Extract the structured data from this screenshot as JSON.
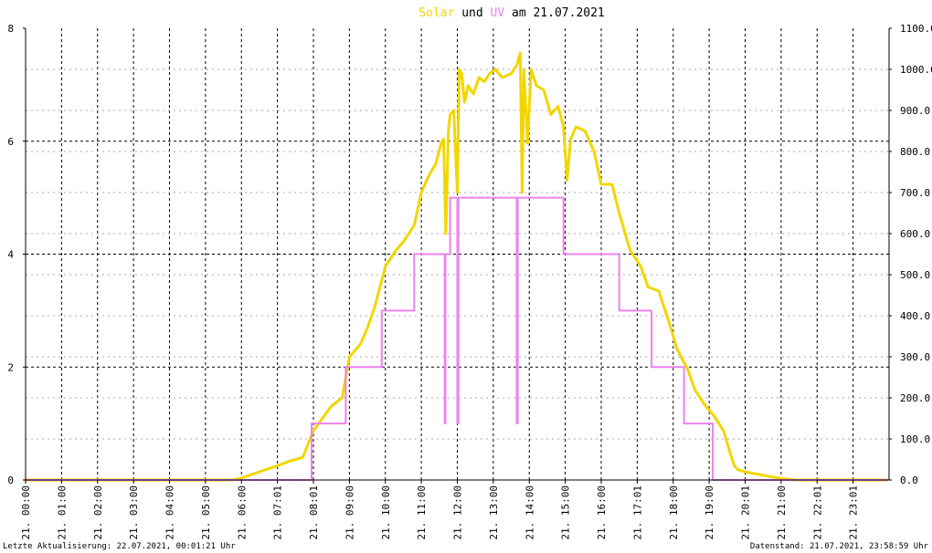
{
  "chart_data": {
    "type": "line",
    "title": {
      "parts": [
        {
          "text": "Solar",
          "color": "#f2d600"
        },
        {
          "text": " und ",
          "color": "#000000"
        },
        {
          "text": "UV",
          "color": "#ee82ee"
        },
        {
          "text": " am 21.07.2021",
          "color": "#000000"
        }
      ]
    },
    "left_axis": {
      "ylim": [
        0,
        8
      ],
      "ticks": [
        "0",
        "2",
        "4",
        "6",
        "8"
      ],
      "series": "UV"
    },
    "right_axis": {
      "ylim": [
        0,
        1100
      ],
      "ticks": [
        "0.0",
        "100.0",
        "200.0",
        "300.0",
        "400.0",
        "500.0",
        "600.0",
        "700.0",
        "800.0",
        "900.0",
        "1000.0",
        "1100.0"
      ],
      "series": "Solar"
    },
    "x_axis": {
      "range_hours": [
        0,
        24
      ],
      "tick_labels": [
        "21. 00:00",
        "21. 01:00",
        "21. 02:00",
        "21. 03:00",
        "21. 04:00",
        "21. 05:00",
        "21. 06:00",
        "21. 07:01",
        "21. 08:01",
        "21. 09:00",
        "21. 10:00",
        "21. 11:00",
        "21. 12:00",
        "21. 13:00",
        "21. 14:00",
        "21. 15:00",
        "21. 16:00",
        "21. 17:01",
        "21. 18:00",
        "21. 19:00",
        "21. 20:01",
        "21. 21:00",
        "21. 22:01",
        "21. 23:01"
      ]
    },
    "grid": true,
    "series": [
      {
        "name": "Solar",
        "axis": "right",
        "color": "#f2d600",
        "x": [
          0,
          5.75,
          6,
          6.5,
          7,
          7.3,
          7.5,
          7.7,
          8,
          8.5,
          8.8,
          9,
          9.3,
          9.5,
          9.7,
          10,
          10.3,
          10.5,
          10.8,
          11,
          11.2,
          11.4,
          11.55,
          11.62,
          11.68,
          11.75,
          11.8,
          11.9,
          12.0,
          12.05,
          12.12,
          12.2,
          12.3,
          12.45,
          12.6,
          12.75,
          12.9,
          13.05,
          13.25,
          13.5,
          13.65,
          13.75,
          13.8,
          13.85,
          13.95,
          14.05,
          14.2,
          14.4,
          14.6,
          14.8,
          14.95,
          15.05,
          15.15,
          15.3,
          15.55,
          15.8,
          16.0,
          16.3,
          16.5,
          16.8,
          17.1,
          17.3,
          17.6,
          17.9,
          18.1,
          18.4,
          18.6,
          18.9,
          19.1,
          19.4,
          19.6,
          19.7,
          19.8,
          20.0,
          20.3,
          20.6,
          20.9,
          21.2,
          21.4,
          22,
          23,
          23.95
        ],
        "y": [
          0,
          0,
          5,
          20,
          35,
          45,
          50,
          55,
          120,
          180,
          200,
          300,
          330,
          370,
          420,
          520,
          560,
          580,
          620,
          700,
          740,
          770,
          820,
          830,
          600,
          850,
          890,
          900,
          700,
          1000,
          990,
          920,
          960,
          940,
          980,
          970,
          990,
          1000,
          980,
          990,
          1010,
          1040,
          700,
          1000,
          820,
          1000,
          960,
          950,
          890,
          910,
          860,
          730,
          830,
          860,
          850,
          800,
          720,
          720,
          650,
          560,
          520,
          470,
          460,
          380,
          320,
          270,
          220,
          180,
          160,
          120,
          60,
          35,
          25,
          20,
          15,
          10,
          5,
          2,
          0,
          0,
          0,
          0
        ]
      },
      {
        "name": "UV",
        "axis": "left",
        "color": "#ee82ee",
        "step": true,
        "x": [
          0,
          7.95,
          7.95,
          8.9,
          8.9,
          9.9,
          9.9,
          10.8,
          10.8,
          11.65,
          11.65,
          11.67,
          11.67,
          11.8,
          11.8,
          11.85,
          11.85,
          12.0,
          12.0,
          12.03,
          12.03,
          12.2,
          12.2,
          13.65,
          13.65,
          13.68,
          13.68,
          13.72,
          13.72,
          14.95,
          14.95,
          16.5,
          16.5,
          17.4,
          17.4,
          18.3,
          18.3,
          19.1,
          19.1,
          23.95
        ],
        "y": [
          0,
          0,
          1,
          1,
          2,
          2,
          3,
          3,
          4,
          4,
          1,
          1,
          4,
          4,
          5,
          5,
          5,
          5,
          1,
          1,
          5,
          5,
          5,
          5,
          1,
          1,
          5,
          5,
          5,
          5,
          4,
          4,
          3,
          3,
          2,
          2,
          1,
          1,
          0,
          0
        ]
      }
    ]
  },
  "footer": {
    "left": "Letzte Aktualisierung: 22.07.2021, 00:01:21 Uhr",
    "right": "Datenstand: 21.07.2021, 23:58:59 Uhr"
  }
}
